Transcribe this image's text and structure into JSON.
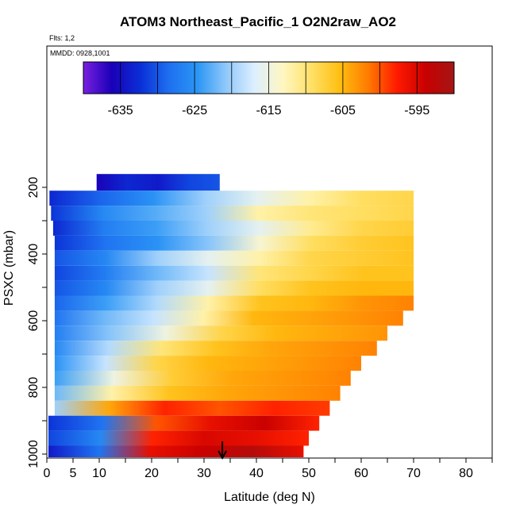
{
  "title": "ATOM3 Northeast_Pacific_1 O2N2raw_AO2",
  "flights": "Flts: 1,2",
  "dates": "MMDD: 0928,1001",
  "chart_data": {
    "type": "heatmap",
    "xlabel": "Latitude (deg N)",
    "ylabel": "PSXC (mbar)",
    "x_ticks": [
      0,
      5,
      10,
      20,
      30,
      40,
      50,
      60,
      70,
      80
    ],
    "y_ticks": [
      200,
      400,
      600,
      800,
      1000
    ],
    "xlim": [
      0,
      85
    ],
    "ylim": [
      1000,
      0
    ],
    "y_reversed": true,
    "colorbar": {
      "ticks": [
        -635,
        -625,
        -615,
        -605,
        -595
      ],
      "range": [
        -640,
        -590
      ],
      "colors": [
        "#7a1fe0",
        "#1a00b8",
        "#0a2fd6",
        "#1e6ff0",
        "#2b96f5",
        "#8fc8fa",
        "#ddefff",
        "#fff7c2",
        "#ffe066",
        "#ffbe10",
        "#ff7a00",
        "#ff1a00",
        "#c80000",
        "#a31616"
      ]
    },
    "layers": [
      {
        "p_top": 160,
        "p_bot": 210,
        "lat_min": 9.5,
        "lat_max": 33,
        "values": [
          -636,
          -633,
          -634,
          -631,
          -630
        ]
      },
      {
        "p_top": 210,
        "p_bot": 255,
        "lat_min": 0.5,
        "lat_max": 70,
        "values": [
          -633,
          -629,
          -625,
          -620,
          -616,
          -612,
          -609,
          -608
        ]
      },
      {
        "p_top": 255,
        "p_bot": 300,
        "lat_min": 0.8,
        "lat_max": 70,
        "values": [
          -632,
          -626,
          -623,
          -620,
          -612,
          -610,
          -609,
          -608
        ]
      },
      {
        "p_top": 300,
        "p_bot": 345,
        "lat_min": 1.2,
        "lat_max": 70,
        "values": [
          -633,
          -627,
          -624,
          -620,
          -616,
          -611,
          -608,
          -607
        ]
      },
      {
        "p_top": 345,
        "p_bot": 390,
        "lat_min": 1.5,
        "lat_max": 70,
        "values": [
          -632,
          -628,
          -625,
          -621,
          -614,
          -609,
          -607,
          -606
        ]
      },
      {
        "p_top": 390,
        "p_bot": 435,
        "lat_min": 1.5,
        "lat_max": 70,
        "values": [
          -630,
          -626,
          -620,
          -616,
          -612,
          -608,
          -607,
          -606
        ]
      },
      {
        "p_top": 435,
        "p_bot": 480,
        "lat_min": 1.5,
        "lat_max": 70,
        "values": [
          -631,
          -627,
          -622,
          -618,
          -610,
          -608,
          -606,
          -606
        ]
      },
      {
        "p_top": 480,
        "p_bot": 525,
        "lat_min": 1.5,
        "lat_max": 70,
        "values": [
          -630,
          -626,
          -620,
          -616,
          -609,
          -606,
          -605,
          -605
        ]
      },
      {
        "p_top": 525,
        "p_bot": 570,
        "lat_min": 1.5,
        "lat_max": 70,
        "values": [
          -629,
          -624,
          -619,
          -612,
          -606,
          -605,
          -603,
          -602
        ]
      },
      {
        "p_top": 570,
        "p_bot": 615,
        "lat_min": 1.5,
        "lat_max": 68,
        "values": [
          -628,
          -622,
          -618,
          -612,
          -605,
          -604,
          -603,
          -602
        ]
      },
      {
        "p_top": 615,
        "p_bot": 660,
        "lat_min": 1.5,
        "lat_max": 65,
        "values": [
          -627,
          -621,
          -615,
          -608,
          -605,
          -604,
          -603
        ]
      },
      {
        "p_top": 660,
        "p_bot": 705,
        "lat_min": 1.5,
        "lat_max": 63,
        "values": [
          -626,
          -619,
          -610,
          -606,
          -604,
          -603,
          -602
        ]
      },
      {
        "p_top": 705,
        "p_bot": 750,
        "lat_min": 1.5,
        "lat_max": 60,
        "values": [
          -625,
          -618,
          -608,
          -605,
          -604,
          -603,
          -602
        ]
      },
      {
        "p_top": 750,
        "p_bot": 795,
        "lat_min": 1.5,
        "lat_max": 58,
        "values": [
          -624,
          -615,
          -607,
          -604,
          -603,
          -602
        ]
      },
      {
        "p_top": 795,
        "p_bot": 840,
        "lat_min": 1.5,
        "lat_max": 56,
        "values": [
          -622,
          -612,
          -606,
          -604,
          -603,
          -602
        ]
      },
      {
        "p_top": 840,
        "p_bot": 885,
        "lat_min": 1.5,
        "lat_max": 54,
        "values": [
          -620,
          -604,
          -598,
          -600,
          -598,
          -599
        ]
      },
      {
        "p_top": 885,
        "p_bot": 930,
        "lat_min": 0.3,
        "lat_max": 52,
        "values": [
          -632,
          -628,
          -600,
          -596,
          -594,
          -598
        ]
      },
      {
        "p_top": 930,
        "p_bot": 975,
        "lat_min": 0.3,
        "lat_max": 50,
        "values": [
          -631,
          -626,
          -598,
          -595,
          -596,
          -598
        ]
      },
      {
        "p_top": 975,
        "p_bot": 1010,
        "lat_min": 0.3,
        "lat_max": 49,
        "values": [
          -634,
          -628,
          -596,
          -594,
          -592,
          -596
        ]
      }
    ],
    "marker": {
      "type": "down-arrow",
      "lat": 33.5,
      "p": 1000
    }
  }
}
